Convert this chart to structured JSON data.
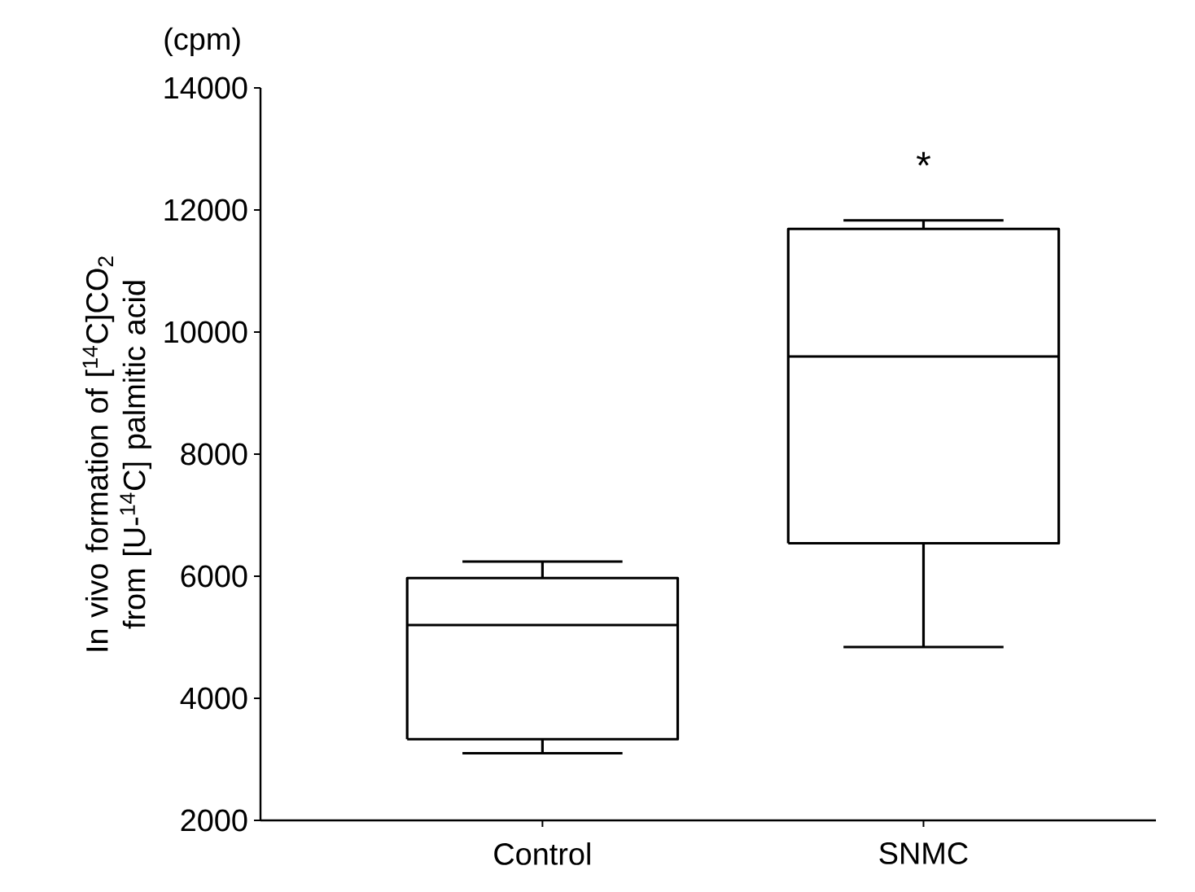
{
  "chart_data": {
    "type": "box",
    "categories": [
      "Control",
      "SNMC"
    ],
    "boxes": [
      {
        "low": 3100,
        "q1": 3330,
        "median": 5200,
        "q3": 5970,
        "high": 6240
      },
      {
        "low": 4840,
        "q1": 6540,
        "median": 9600,
        "q3": 11690,
        "high": 11830
      }
    ],
    "ylabel": "In vivo formation of [$^{14}$C]CO$_{2}$ from [U-$^{14}$C] palmitic acid",
    "ylim": [
      2000,
      14000
    ],
    "yticks": [
      2000,
      4000,
      6000,
      8000,
      10000,
      12000,
      14000
    ],
    "annotations": [
      "(cpm)",
      "*"
    ]
  }
}
